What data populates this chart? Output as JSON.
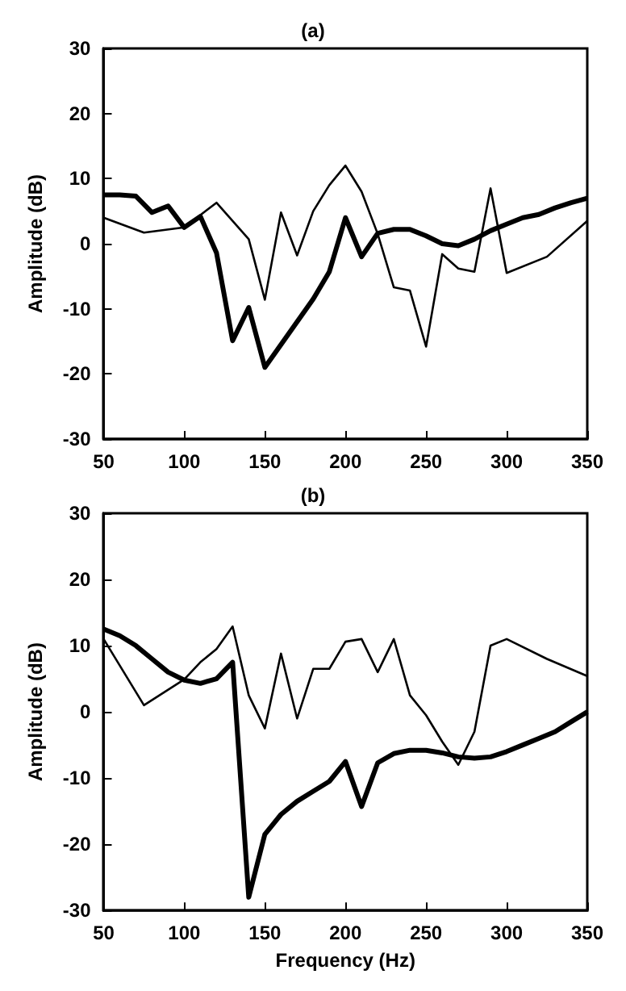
{
  "chart_data": [
    {
      "type": "line",
      "title": "(a)",
      "ylabel": "Amplitude (dB)",
      "xlim": [
        50,
        350
      ],
      "xticks": [
        50,
        100,
        150,
        200,
        250,
        300,
        350
      ],
      "ylim": [
        -30,
        30
      ],
      "yticks": [
        -30,
        -20,
        -10,
        0,
        10,
        20,
        30
      ],
      "grid": false,
      "marker": "none",
      "series": [
        {
          "color": "#000000",
          "x": [
            50,
            60,
            70,
            80,
            90,
            100,
            110,
            120,
            130,
            140,
            150,
            160,
            170,
            180,
            190,
            200,
            210,
            220,
            230,
            240,
            250,
            260,
            270,
            280,
            290,
            300,
            310,
            320,
            330,
            340,
            350
          ],
          "values": [
            7.5,
            7.5,
            7.3,
            4.8,
            5.8,
            2.5,
            4.2,
            -1.4,
            -14.9,
            -9.8,
            -19,
            -15.5,
            -12,
            -8.5,
            -4.3,
            4,
            -2,
            1.6,
            2.2,
            2.2,
            1.2,
            0,
            -0.3,
            0.7,
            2,
            3,
            4,
            4.5,
            5.5,
            6.3,
            7
          ]
        },
        {
          "color": "#000000",
          "x": [
            50,
            75,
            100,
            120,
            140,
            150,
            160,
            170,
            180,
            190,
            200,
            210,
            220,
            230,
            240,
            250,
            260,
            270,
            280,
            290,
            300,
            325,
            350
          ],
          "values": [
            4,
            1.7,
            2.5,
            6.3,
            0.7,
            -8.6,
            4.8,
            -1.8,
            5,
            9,
            12,
            8,
            1.5,
            -6.7,
            -7.2,
            -15.8,
            -1.6,
            -3.8,
            -4.3,
            8.5,
            -4.5,
            -2,
            3.5
          ]
        }
      ]
    },
    {
      "type": "line",
      "title": "(b)",
      "xlabel": "Frequency (Hz)",
      "ylabel": "Amplitude (dB)",
      "xlim": [
        50,
        350
      ],
      "xticks": [
        50,
        100,
        150,
        200,
        250,
        300,
        350
      ],
      "ylim": [
        -30,
        30
      ],
      "yticks": [
        -30,
        -20,
        -10,
        0,
        10,
        20,
        30
      ],
      "grid": false,
      "marker": "none",
      "series": [
        {
          "color": "#000000",
          "x": [
            50,
            60,
            70,
            80,
            90,
            100,
            110,
            120,
            130,
            140,
            150,
            160,
            170,
            180,
            190,
            200,
            210,
            220,
            230,
            240,
            250,
            260,
            270,
            280,
            290,
            300,
            310,
            320,
            330,
            340,
            350
          ],
          "values": [
            12.5,
            11.5,
            10,
            8,
            6,
            4.8,
            4.3,
            5,
            7.5,
            -28,
            -18.5,
            -15.5,
            -13.5,
            -12,
            -10.5,
            -7.5,
            -14.3,
            -7.7,
            -6.3,
            -5.8,
            -5.8,
            -6.2,
            -6.8,
            -7,
            -6.8,
            -6,
            -5,
            -4,
            -3,
            -1.5,
            0
          ]
        },
        {
          "color": "#000000",
          "x": [
            50,
            75,
            100,
            110,
            120,
            130,
            140,
            150,
            160,
            170,
            180,
            190,
            200,
            210,
            220,
            230,
            240,
            250,
            260,
            270,
            280,
            290,
            300,
            325,
            350
          ],
          "values": [
            11,
            1,
            4.9,
            7.5,
            9.5,
            12.9,
            2.5,
            -2.5,
            8.8,
            -1,
            6.5,
            6.5,
            10.6,
            11,
            6,
            11,
            2.5,
            -0.5,
            -4.5,
            -8,
            -3,
            10,
            11,
            8,
            5.4
          ]
        }
      ]
    }
  ]
}
